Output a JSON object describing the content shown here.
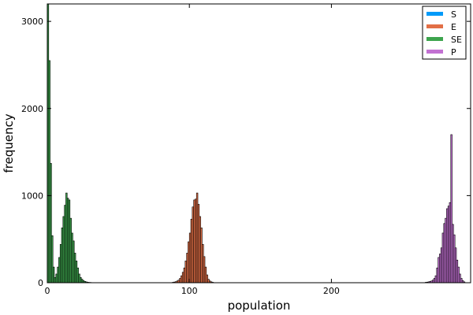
{
  "chart_data": {
    "type": "bar",
    "title": "",
    "xlabel": "population",
    "ylabel": "frequency",
    "xlim": [
      0,
      298
    ],
    "ylim": [
      0,
      3200
    ],
    "xticks": [
      0,
      100,
      200
    ],
    "yticks": [
      0,
      1000,
      2000,
      3000
    ],
    "grid": false,
    "legend_position": "top-right",
    "bin_width": 1,
    "series": [
      {
        "name": "S",
        "color": "#009af9",
        "bins": []
      },
      {
        "name": "E",
        "color": "#e26f46",
        "bins": [
          [
            88,
            5
          ],
          [
            89,
            8
          ],
          [
            90,
            12
          ],
          [
            91,
            20
          ],
          [
            92,
            30
          ],
          [
            93,
            50
          ],
          [
            94,
            80
          ],
          [
            95,
            120
          ],
          [
            96,
            170
          ],
          [
            97,
            250
          ],
          [
            98,
            340
          ],
          [
            99,
            470
          ],
          [
            100,
            570
          ],
          [
            101,
            730
          ],
          [
            102,
            870
          ],
          [
            103,
            950
          ],
          [
            104,
            960
          ],
          [
            105,
            1030
          ],
          [
            106,
            900
          ],
          [
            107,
            760
          ],
          [
            108,
            630
          ],
          [
            109,
            440
          ],
          [
            110,
            300
          ],
          [
            111,
            180
          ],
          [
            112,
            90
          ],
          [
            113,
            40
          ],
          [
            114,
            20
          ],
          [
            115,
            10
          ],
          [
            116,
            5
          ]
        ]
      },
      {
        "name": "SE",
        "color": "#3da44d",
        "bins": [
          [
            0,
            3200
          ],
          [
            1,
            2550
          ],
          [
            2,
            1370
          ],
          [
            3,
            540
          ],
          [
            4,
            180
          ],
          [
            5,
            60
          ],
          [
            6,
            100
          ],
          [
            7,
            180
          ],
          [
            8,
            290
          ],
          [
            9,
            440
          ],
          [
            10,
            630
          ],
          [
            11,
            760
          ],
          [
            12,
            890
          ],
          [
            13,
            1030
          ],
          [
            14,
            970
          ],
          [
            15,
            950
          ],
          [
            16,
            740
          ],
          [
            17,
            570
          ],
          [
            18,
            480
          ],
          [
            19,
            340
          ],
          [
            20,
            250
          ],
          [
            21,
            170
          ],
          [
            22,
            100
          ],
          [
            23,
            60
          ],
          [
            24,
            40
          ],
          [
            25,
            25
          ],
          [
            26,
            15
          ],
          [
            27,
            10
          ],
          [
            28,
            6
          ],
          [
            29,
            4
          ],
          [
            30,
            3
          ]
        ]
      },
      {
        "name": "P",
        "color": "#c271d2",
        "bins": [
          [
            266,
            5
          ],
          [
            267,
            7
          ],
          [
            268,
            10
          ],
          [
            269,
            15
          ],
          [
            270,
            20
          ],
          [
            271,
            30
          ],
          [
            272,
            50
          ],
          [
            273,
            80
          ],
          [
            274,
            170
          ],
          [
            275,
            290
          ],
          [
            276,
            330
          ],
          [
            277,
            400
          ],
          [
            278,
            570
          ],
          [
            279,
            680
          ],
          [
            280,
            740
          ],
          [
            281,
            850
          ],
          [
            282,
            880
          ],
          [
            283,
            920
          ],
          [
            284,
            1700
          ],
          [
            285,
            670
          ],
          [
            286,
            550
          ],
          [
            287,
            400
          ],
          [
            288,
            260
          ],
          [
            289,
            180
          ],
          [
            290,
            100
          ],
          [
            291,
            50
          ],
          [
            292,
            25
          ],
          [
            293,
            10
          ]
        ]
      }
    ]
  }
}
